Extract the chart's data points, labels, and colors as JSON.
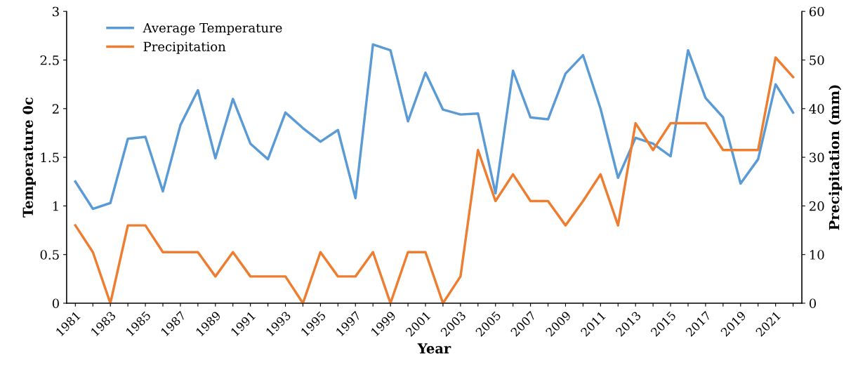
{
  "chart_data": {
    "type": "line",
    "xlabel": "Year",
    "ylabel": "Temperature 0c",
    "y2label": "Precipitation (mm)",
    "categories": [
      "1981",
      null,
      "1983",
      null,
      "1985",
      null,
      "1987",
      null,
      "1989",
      null,
      "1991",
      null,
      "1993",
      null,
      "1995",
      null,
      "1997",
      null,
      "1999",
      null,
      "2001",
      null,
      "2003",
      null,
      "2005",
      null,
      "2007",
      null,
      "2009",
      null,
      "2011",
      null,
      "2013",
      null,
      "2015",
      null,
      "2017",
      null,
      "2019",
      null,
      "2021",
      null
    ],
    "series": [
      {
        "name": "Average Temperature",
        "color": "#5b9bd5",
        "values": [
          1.25,
          0.97,
          1.03,
          1.69,
          1.71,
          1.15,
          1.83,
          2.19,
          1.49,
          2.1,
          1.64,
          1.48,
          1.96,
          1.8,
          1.66,
          1.78,
          1.08,
          2.66,
          2.6,
          1.87,
          2.37,
          1.99,
          1.94,
          1.95,
          1.13,
          2.39,
          1.91,
          1.89,
          2.36,
          2.55,
          2.0,
          1.29,
          1.7,
          1.64,
          1.51,
          2.6,
          2.11,
          1.91,
          1.23,
          1.48,
          2.25,
          1.96
        ]
      },
      {
        "name": "Precipitation",
        "color": "#ed7d31",
        "axis": "y2",
        "values": [
          16,
          10.5,
          0,
          16,
          16,
          10.5,
          10.5,
          10.5,
          5.5,
          10.5,
          5.5,
          5.5,
          5.5,
          0,
          10.5,
          5.5,
          5.5,
          10.5,
          0,
          10.5,
          10.5,
          0,
          5.5,
          31.5,
          21,
          26.5,
          21,
          21,
          16,
          21,
          26.5,
          16,
          37,
          31.5,
          37,
          37,
          37,
          31.5,
          31.5,
          31.5,
          50.5,
          46.5
        ]
      }
    ],
    "ylim": [
      0,
      3
    ],
    "yticks": [
      0,
      0.5,
      1,
      1.5,
      2,
      2.5,
      3
    ],
    "y2lim": [
      0,
      60
    ],
    "y2ticks": [
      0,
      10,
      20,
      30,
      40,
      50,
      60
    ],
    "grid": false,
    "legend": "top left",
    "marker": "none",
    "line_style": "solid"
  }
}
